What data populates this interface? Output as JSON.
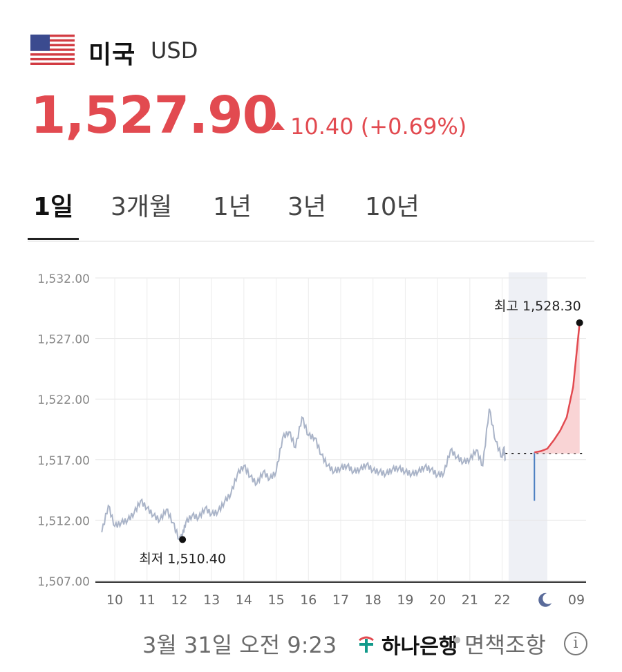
{
  "header": {
    "country": "미국",
    "currency_code": "USD",
    "flag_icon": "us-flag-icon"
  },
  "quote": {
    "price": "1,527.90",
    "change": "10.40 (+0.69%)",
    "direction": "up",
    "color": "#e24a50"
  },
  "tabs": [
    {
      "label": "1일",
      "active": true
    },
    {
      "label": "3개월",
      "active": false
    },
    {
      "label": "1년",
      "active": false
    },
    {
      "label": "3년",
      "active": false
    },
    {
      "label": "10년",
      "active": false
    }
  ],
  "chart_data": {
    "type": "line",
    "x_ticks": [
      "10",
      "11",
      "12",
      "13",
      "14",
      "15",
      "16",
      "17",
      "18",
      "19",
      "20",
      "21",
      "22",
      "moon-icon",
      "09"
    ],
    "y_ticks": [
      "1,532.00",
      "1,527.00",
      "1,522.00",
      "1,517.00",
      "1,512.00",
      "1,507.00"
    ],
    "ylim": [
      1507,
      1532
    ],
    "grid": true,
    "previous_close": 1517.5,
    "high_label": "최고 1,528.30",
    "low_label": "최저 1,510.40",
    "high_value": 1528.3,
    "low_value": 1510.4,
    "series": [
      {
        "session": "day",
        "color": "#aab4c8",
        "x": [
          9.6,
          9.8,
          10.0,
          10.2,
          10.4,
          10.6,
          10.8,
          11.0,
          11.2,
          11.4,
          11.6,
          11.8,
          12.0,
          12.1,
          12.2,
          12.4,
          12.6,
          12.8,
          13.0,
          13.2,
          13.4,
          13.6,
          13.8,
          14.0,
          14.2,
          14.4,
          14.6,
          14.8,
          15.0,
          15.2,
          15.4,
          15.6,
          15.8,
          16.0,
          16.2,
          16.4,
          16.6,
          16.8,
          17.0,
          17.2,
          17.4,
          17.6,
          17.8,
          18.0,
          18.2,
          18.4,
          18.6,
          18.8,
          19.0,
          19.2,
          19.4,
          19.6,
          19.8,
          20.0,
          20.2,
          20.4,
          20.6,
          20.8,
          21.0,
          21.2,
          21.4,
          21.6,
          21.8,
          22.0,
          22.05,
          22.1
        ],
        "values": [
          1511.0,
          1513.2,
          1511.5,
          1511.8,
          1512.0,
          1512.6,
          1513.6,
          1513.0,
          1512.4,
          1512.0,
          1512.9,
          1511.8,
          1510.4,
          1510.8,
          1511.8,
          1512.4,
          1512.2,
          1513.0,
          1512.5,
          1512.7,
          1513.5,
          1514.2,
          1515.8,
          1516.5,
          1515.6,
          1515.0,
          1516.0,
          1515.4,
          1516.0,
          1518.8,
          1519.3,
          1518.0,
          1520.5,
          1519.0,
          1518.8,
          1517.4,
          1516.5,
          1516.0,
          1516.3,
          1516.5,
          1516.0,
          1516.2,
          1516.6,
          1516.1,
          1516.0,
          1515.8,
          1516.2,
          1516.3,
          1516.0,
          1515.8,
          1516.0,
          1516.4,
          1516.2,
          1515.7,
          1515.9,
          1517.8,
          1517.2,
          1516.8,
          1517.0,
          1517.8,
          1516.5,
          1521.2,
          1518.5,
          1517.2,
          1518.0,
          1517.0
        ]
      },
      {
        "session": "night",
        "color": "#e24a50",
        "x": [
          23.0,
          23.2,
          23.4,
          23.6,
          23.8,
          24.0,
          24.2,
          24.4
        ],
        "values": [
          1517.6,
          1517.7,
          1517.9,
          1518.6,
          1519.4,
          1520.5,
          1523.0,
          1528.3
        ]
      }
    ]
  },
  "footer": {
    "timestamp": "3월 31일 오전 9:23",
    "bank": "하나은행",
    "separator": "•",
    "disclaimer": "면책조항",
    "info_icon": "i"
  }
}
